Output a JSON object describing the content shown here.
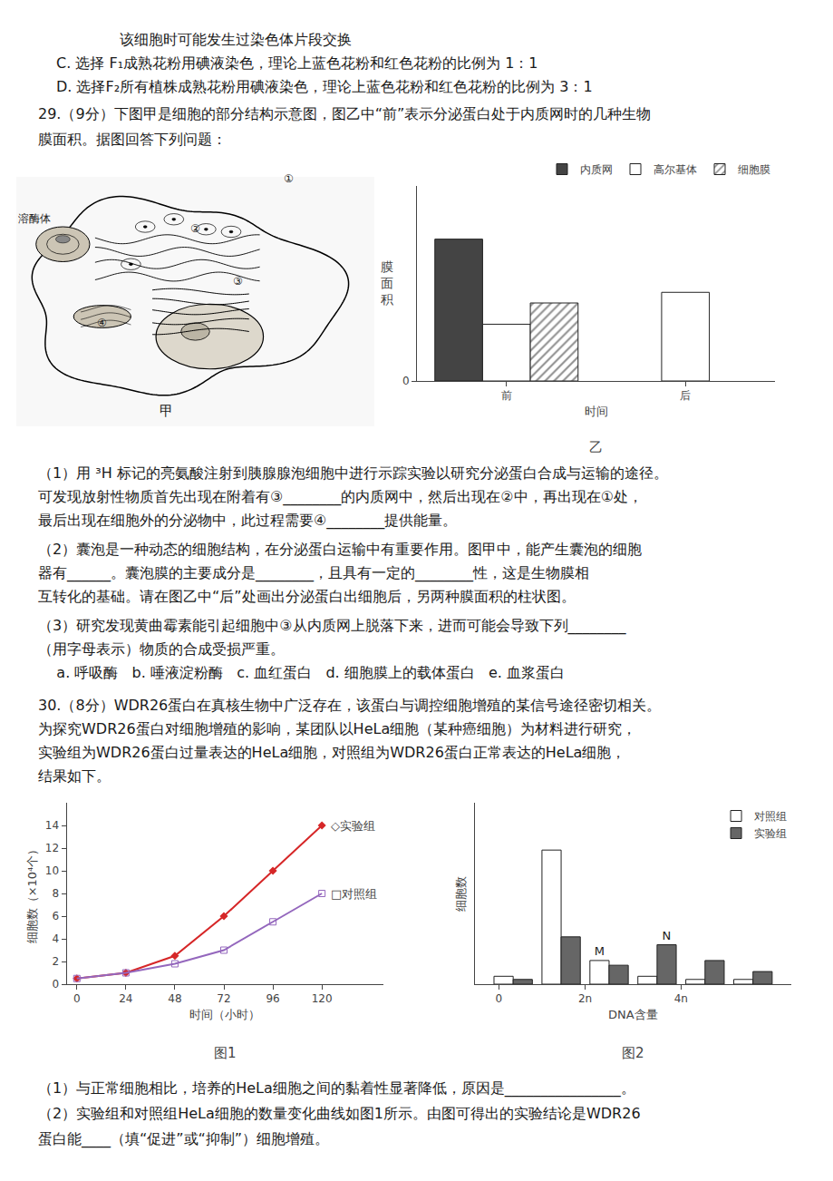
{
  "chart_data": [
    {
      "type": "bar",
      "title": "乙",
      "x_label": "时间",
      "y_label": "膜\n面\n积",
      "categories": [
        "前",
        "后"
      ],
      "series": [
        {
          "name": "内质网",
          "color": "#444444",
          "values": [
            4.0,
            null
          ]
        },
        {
          "name": "高尔基体",
          "color": "#ffffff",
          "values": [
            1.6,
            2.5
          ]
        },
        {
          "name": "细胞膜",
          "color": "#ffffff",
          "marker": "hatch",
          "values": [
            2.2,
            null
          ]
        }
      ],
      "ylim": [
        0,
        5.5
      ],
      "yticks": [
        0
      ],
      "legend": "upper right"
    },
    {
      "type": "line",
      "title": "图1",
      "x_label": "时间（小时）",
      "y_label": "细胞数（×10⁴个）",
      "x": [
        0,
        24,
        48,
        72,
        96,
        120
      ],
      "series": [
        {
          "name": "◇实验组",
          "marker": "diamond",
          "values": [
            0.5,
            1.0,
            2.5,
            6.0,
            10.0,
            14.0
          ]
        },
        {
          "name": "□对照组",
          "marker": "square-open",
          "values": [
            0.5,
            1.0,
            1.8,
            3.0,
            5.5,
            8.0
          ]
        }
      ],
      "xlim": [
        -5,
        150
      ],
      "xticks": [
        0,
        24,
        48,
        72,
        96,
        120
      ],
      "ylim": [
        0,
        16
      ],
      "yticks": [
        0,
        2,
        4,
        6,
        8,
        10,
        12,
        14
      ]
    },
    {
      "type": "bar",
      "title": "图2",
      "x_label": "DNA含量",
      "y_label": "细胞数",
      "x": [
        0,
        1,
        2,
        3,
        4,
        5
      ],
      "series": [
        {
          "name": "对照组",
          "color": "#ffffff",
          "values": [
            0.5,
            8.5,
            1.5,
            0.5,
            0.3,
            0.3
          ]
        },
        {
          "name": "实验组",
          "color": "#666666",
          "values": [
            0.3,
            3.0,
            1.2,
            2.5,
            1.5,
            0.8
          ]
        }
      ],
      "xlim": [
        -0.8,
        5.8
      ],
      "xticks": [
        {
          "value": -0.3,
          "label": "0"
        },
        {
          "value": 1.5,
          "label": "2n"
        },
        {
          "value": 3.5,
          "label": "4n"
        }
      ],
      "ylim": [
        0,
        11.5
      ],
      "yticks": [],
      "tick_labels": "x",
      "legend": "upper right",
      "annotations": [
        {
          "text": "M",
          "series": "对照组",
          "x": 2
        },
        {
          "text": "N",
          "series": "实验组",
          "x": 3
        }
      ]
    }
  ],
  "annotations": [
    "该细胞时可能发生过染色体片段交换",
    "C. 选择 F₁成熟花粉用碘液染色，理论上蓝色花粉和红色花粉的比例为 1：1",
    "D. 选择F₂所有植株成熟花粉用碘液染色，理论上蓝色花粉和红色花粉的比例为 3：1",
    "29.（9分）下图甲是细胞的部分结构示意图，图乙中“前”表示分泌蛋白处于内质网时的几种生物",
    "膜面积。据图回答下列问题：",
    "（1）用 ³H 标记的亮氨酸注射到胰腺腺泡细胞中进行示踪实验以研究分泌蛋白合成与运输的途径。",
    "可发现放射性物质首先出现在附着有③________的内质网中，然后出现在②中，再出现在①处，",
    "最后出现在细胞外的分泌物中，此过程需要④________提供能量。",
    "（2）囊泡是一种动态的细胞结构，在分泌蛋白运输中有重要作用。图甲中，能产生囊泡的细胞",
    "器有______。囊泡膜的主要成分是________，且具有一定的________性，这是生物膜相",
    "互转化的基础。请在图乙中“后”处画出分泌蛋白出细胞后，另两种膜面积的柱状图。",
    "（3）研究发现黄曲霉素能引起细胞中③从内质网上脱落下来，进而可能会导致下列________",
    "（用字母表示）物质的合成受损严重。",
    "    a. 呼吸酶   b. 唾液淀粉酶   c. 血红蛋白   d. 细胞膜上的载体蛋白   e. 血浆蛋白",
    "30.（8分）WDR26蛋白在真核生物中广泛存在，该蛋白与调控细胞增殖的某信号途径密切相关。",
    "为探究WDR26蛋白对细胞增殖的影响，某团队以HeLa细胞（某种癌细胞）为材料进行研究，",
    "实验组为WDR26蛋白过量表达的HeLa细胞，对照组为WDR26蛋白正常表达的HeLa细胞，",
    "结果如下。",
    "（1）与正常细胞相比，培养的HeLa细胞之间的黏着性显著降低，原因是________________。",
    "（2）实验组和对照组HeLa细胞的数量变化曲线如图1所示。由图可得出的实验结论是WDR26",
    "蛋白能____（填“促进”或“抑制”）细胞增殖。",
    "①",
    "②",
    "③",
    "④",
    "溶酶体",
    "甲"
  ]
}
